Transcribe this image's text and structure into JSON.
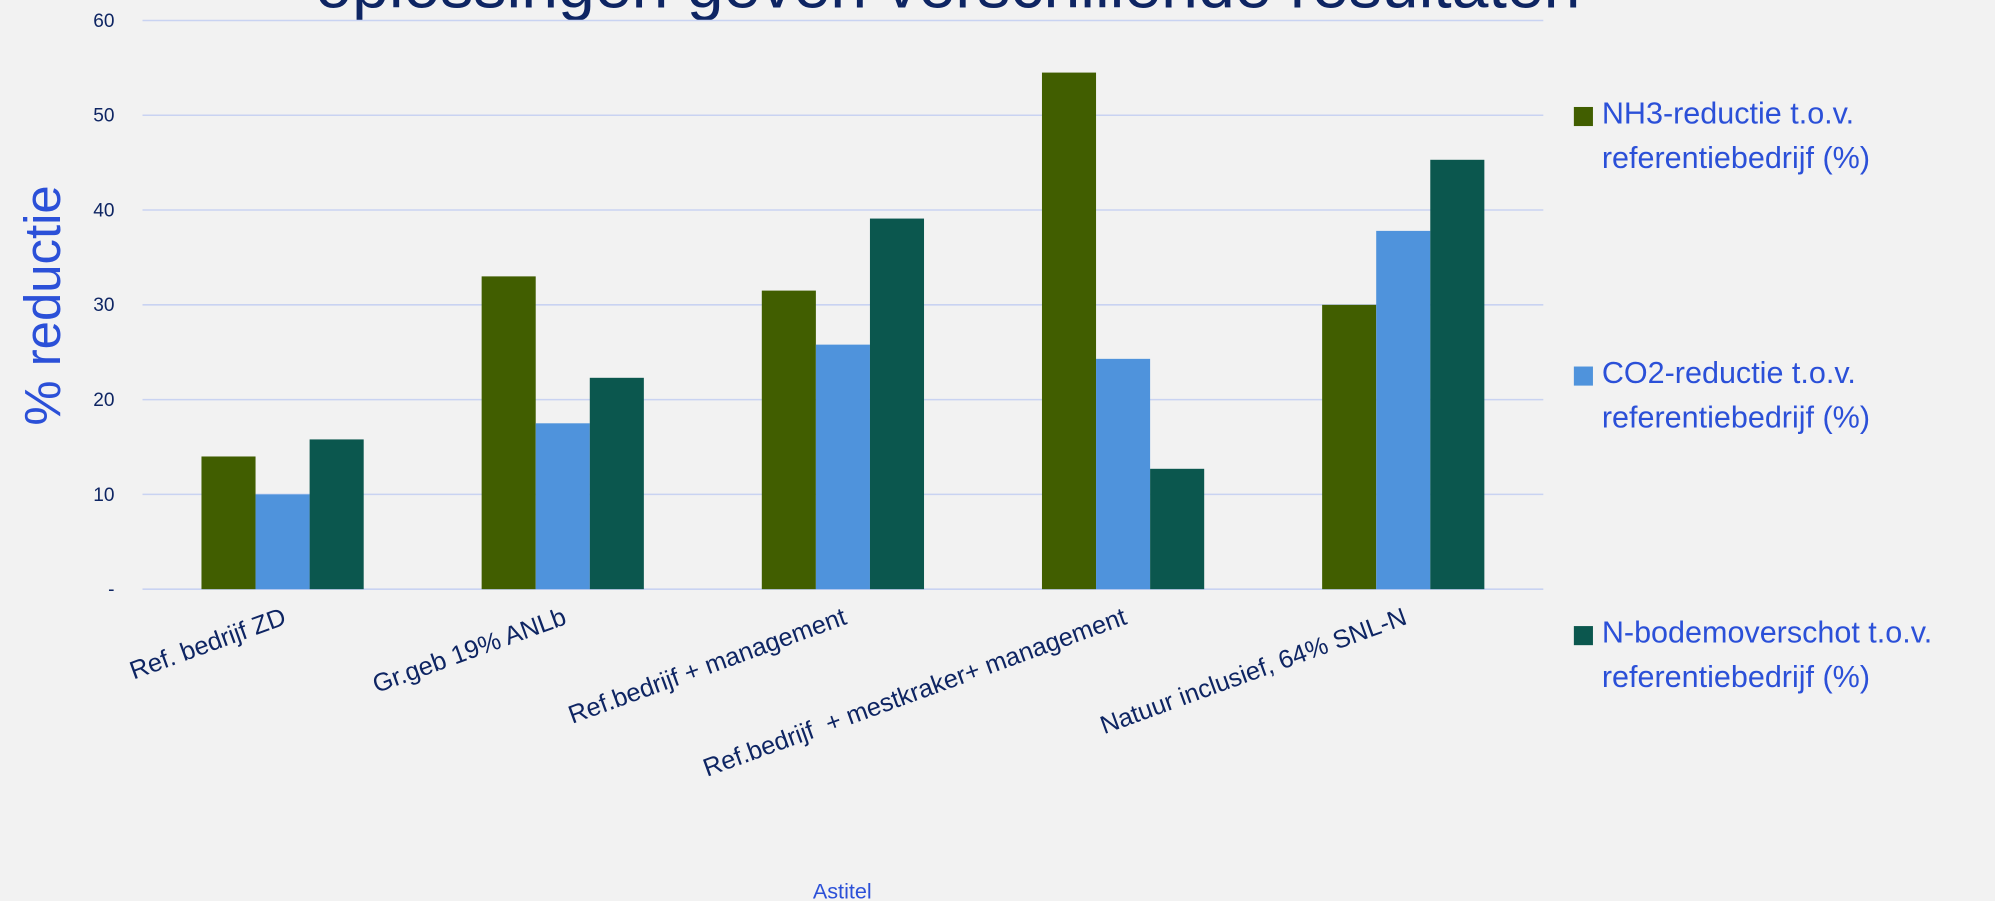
{
  "chart_data": {
    "type": "bar",
    "title": "oplossingen geven verschillende resultaten",
    "y_label": "% reductie",
    "x_label": "Astitel",
    "categories": [
      "Ref. bedrijf ZD",
      "Gr.geb 19% ANLb",
      "Ref.bedrijf + management",
      "Ref.bedrijf  + mestkraker+ management",
      "Natuur inclusief, 64% SNL-N"
    ],
    "series": [
      {
        "name": "NH3-reductie t.o.v. referentiebedrijf (%)",
        "color": "#415e00",
        "values": [
          14,
          33,
          31.5,
          54.5,
          30
        ]
      },
      {
        "name": "CO2-reductie t.o.v. referentiebedrijf (%)",
        "color": "#4f93dc",
        "values": [
          10,
          17.5,
          25.8,
          24.3,
          37.8
        ]
      },
      {
        "name": "N-bodemoverschot t.o.v. referentiebedrijf (%)",
        "color": "#0b574e",
        "values": [
          15.8,
          22.3,
          39.1,
          12.7,
          45.3
        ]
      }
    ],
    "ylim": [
      0,
      60
    ],
    "yticks": [
      {
        "value": 0,
        "label": "-"
      },
      10,
      20,
      30,
      40,
      50,
      60
    ],
    "grid": true,
    "legend": "right"
  }
}
